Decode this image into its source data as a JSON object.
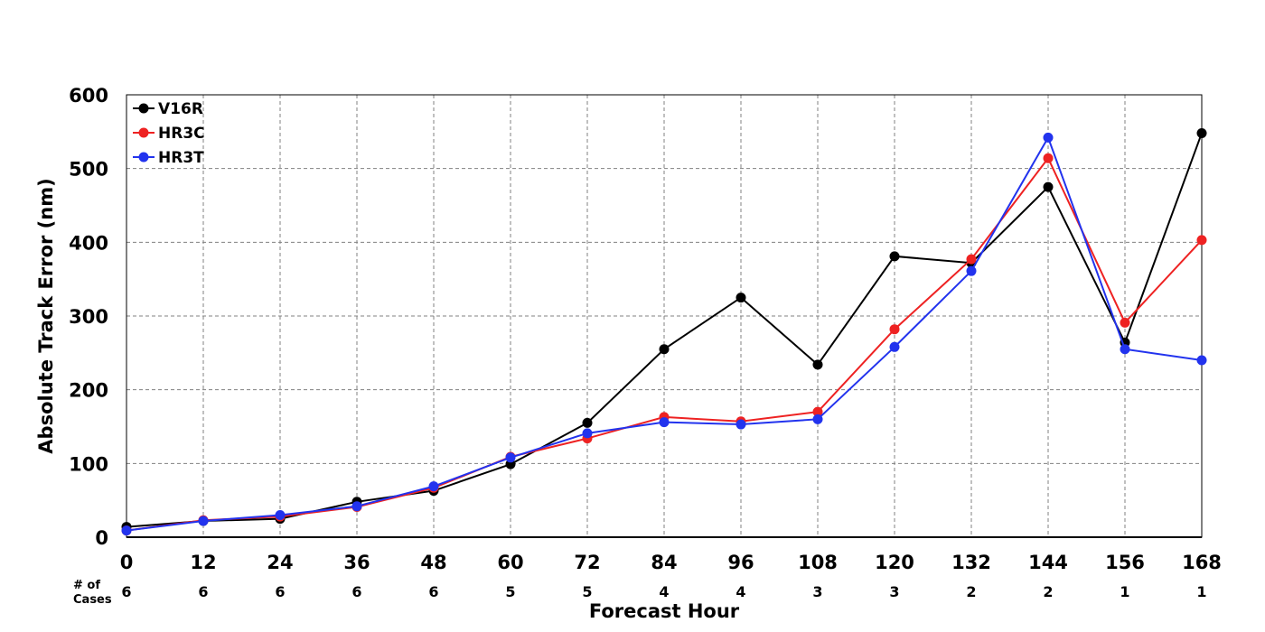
{
  "chart_data": {
    "type": "line",
    "title": "",
    "xlabel": "Forecast Hour",
    "ylabel": "Absolute Track Error (nm)",
    "x": [
      0,
      12,
      24,
      36,
      48,
      60,
      72,
      84,
      96,
      108,
      120,
      132,
      144,
      156,
      168
    ],
    "xlim": [
      0,
      168
    ],
    "ylim": [
      0,
      600
    ],
    "yticks": [
      0,
      100,
      200,
      300,
      400,
      500,
      600
    ],
    "grid": true,
    "legend_position": "top-left",
    "cases_label": [
      "# of",
      "Cases"
    ],
    "cases": [
      6,
      6,
      6,
      6,
      6,
      5,
      5,
      4,
      4,
      3,
      3,
      2,
      2,
      1,
      1
    ],
    "series": [
      {
        "name": "V16R",
        "color": "#000000",
        "values": [
          14,
          22,
          25,
          48,
          63,
          99,
          155,
          255,
          325,
          234,
          381,
          372,
          475,
          264,
          548
        ]
      },
      {
        "name": "HR3C",
        "color": "#ee2222",
        "values": [
          9,
          23,
          28,
          41,
          67,
          109,
          134,
          163,
          157,
          170,
          282,
          377,
          514,
          291,
          403
        ]
      },
      {
        "name": "HR3T",
        "color": "#2233ee",
        "values": [
          9,
          22,
          30,
          42,
          69,
          108,
          141,
          156,
          153,
          160,
          258,
          361,
          542,
          255,
          240
        ]
      }
    ]
  }
}
